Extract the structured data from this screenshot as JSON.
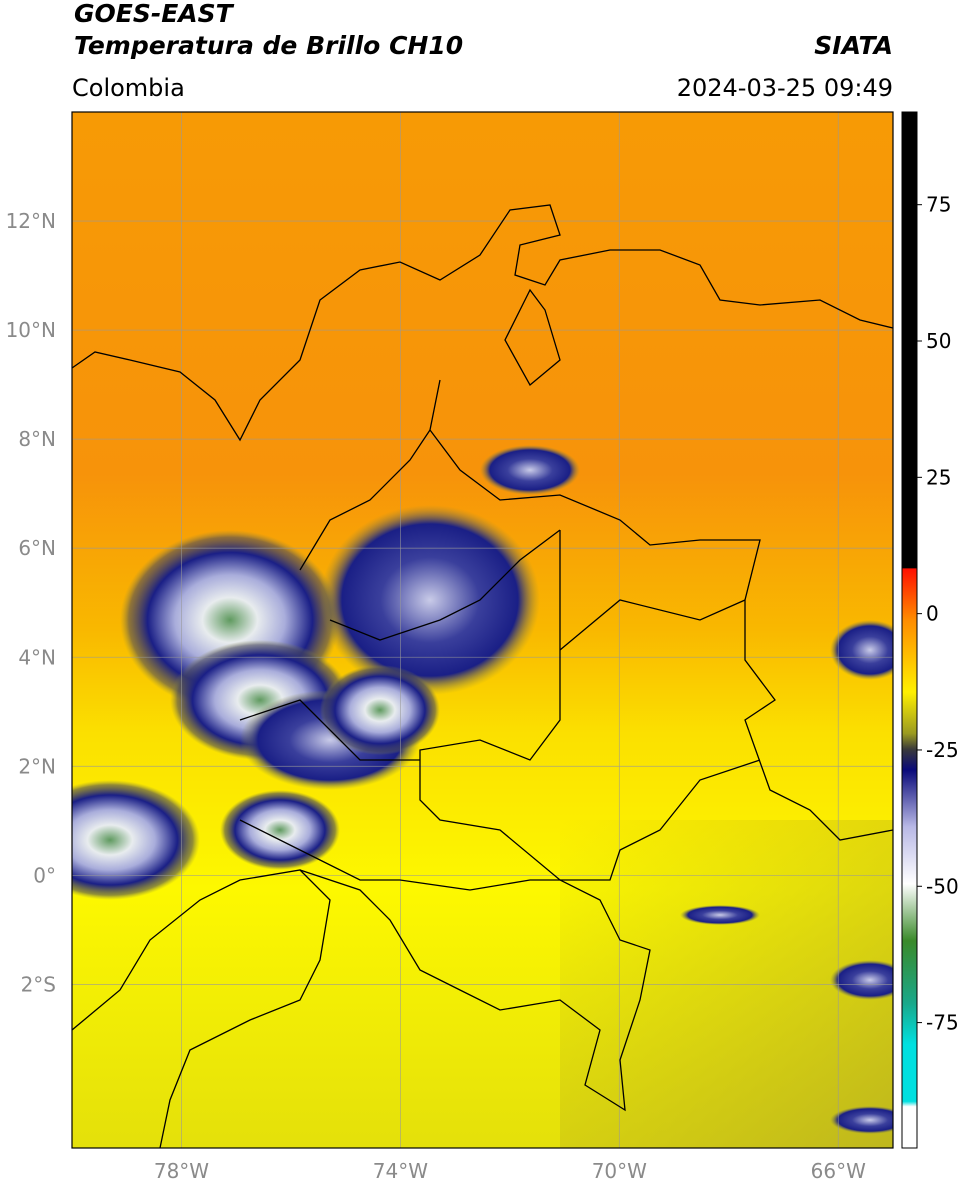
{
  "header": {
    "title_line1": "GOES-EAST",
    "title_line2": "Temperatura de Brillo CH10",
    "source": "SIATA",
    "region": "Colombia",
    "datetime": "2024-03-25 09:49"
  },
  "map": {
    "xlim": [
      -80,
      -65
    ],
    "ylim": [
      -5,
      14
    ],
    "grid": true,
    "xticks": [
      {
        "value": -78,
        "label": "78°W"
      },
      {
        "value": -74,
        "label": "74°W"
      },
      {
        "value": -70,
        "label": "70°W"
      },
      {
        "value": -66,
        "label": "66°W"
      }
    ],
    "yticks": [
      {
        "value": -2,
        "label": "2°S"
      },
      {
        "value": 0,
        "label": "0°"
      },
      {
        "value": 2,
        "label": "2°N"
      },
      {
        "value": 4,
        "label": "4°N"
      },
      {
        "value": 6,
        "label": "6°N"
      },
      {
        "value": 8,
        "label": "8°N"
      },
      {
        "value": 10,
        "label": "10°N"
      },
      {
        "value": 12,
        "label": "12°N"
      }
    ]
  },
  "colorbar": {
    "lim": [
      -98,
      92
    ],
    "ticks": [
      75,
      50,
      25,
      0,
      -25,
      -50,
      -75
    ]
  }
}
